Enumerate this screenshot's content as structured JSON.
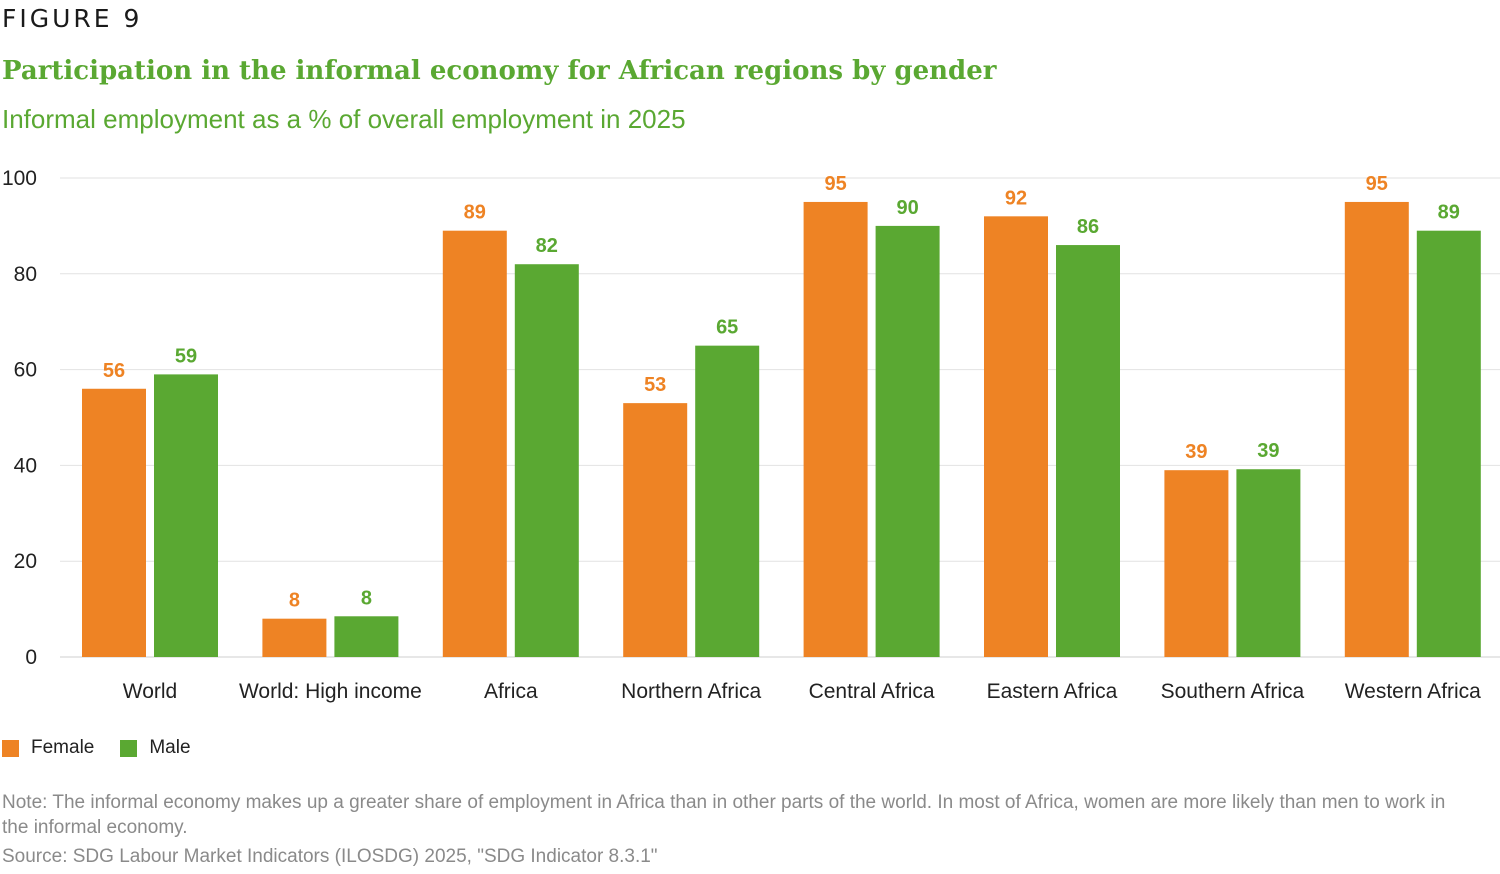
{
  "figure_label": "FIGURE 9",
  "colors": {
    "female": "#ee8324",
    "male": "#5aa832",
    "title": "#5aa832",
    "grid": "#e2e2e2",
    "axis_text": "#222222",
    "note_text": "#8a8a8a"
  },
  "legend": {
    "female_label": "Female",
    "male_label": "Male"
  },
  "note": "Note: The informal economy makes up a greater share of employment in Africa than in other parts of the world. In most of Africa, women are more likely than men to work in the informal economy.",
  "source": "Source: SDG Labour Market Indicators (ILOSDG) 2025, \"SDG Indicator 8.3.1\"",
  "chart_data": {
    "type": "bar",
    "title": "Participation in the informal economy for African regions by gender",
    "subtitle": "Informal employment as a % of overall employment in 2025",
    "xlabel": "",
    "ylabel": "",
    "ylim": [
      0,
      100
    ],
    "yticks": [
      0,
      20,
      40,
      60,
      80,
      100
    ],
    "grid": true,
    "legend_position": "bottom-left",
    "categories": [
      "World",
      "World: High income",
      "Africa",
      "Northern Africa",
      "Central Africa",
      "Eastern Africa",
      "Southern Africa",
      "Western Africa"
    ],
    "series": [
      {
        "name": "Female",
        "values": [
          56,
          8,
          89,
          53,
          95,
          92,
          39,
          95
        ],
        "labels": [
          "56",
          "8",
          "89",
          "53",
          "95",
          "92",
          "39",
          "95"
        ]
      },
      {
        "name": "Male",
        "values": [
          59,
          8.5,
          82,
          65,
          90,
          86,
          39.2,
          89
        ],
        "labels": [
          "59",
          "8",
          "82",
          "65",
          "90",
          "86",
          "39",
          "89"
        ]
      }
    ]
  }
}
